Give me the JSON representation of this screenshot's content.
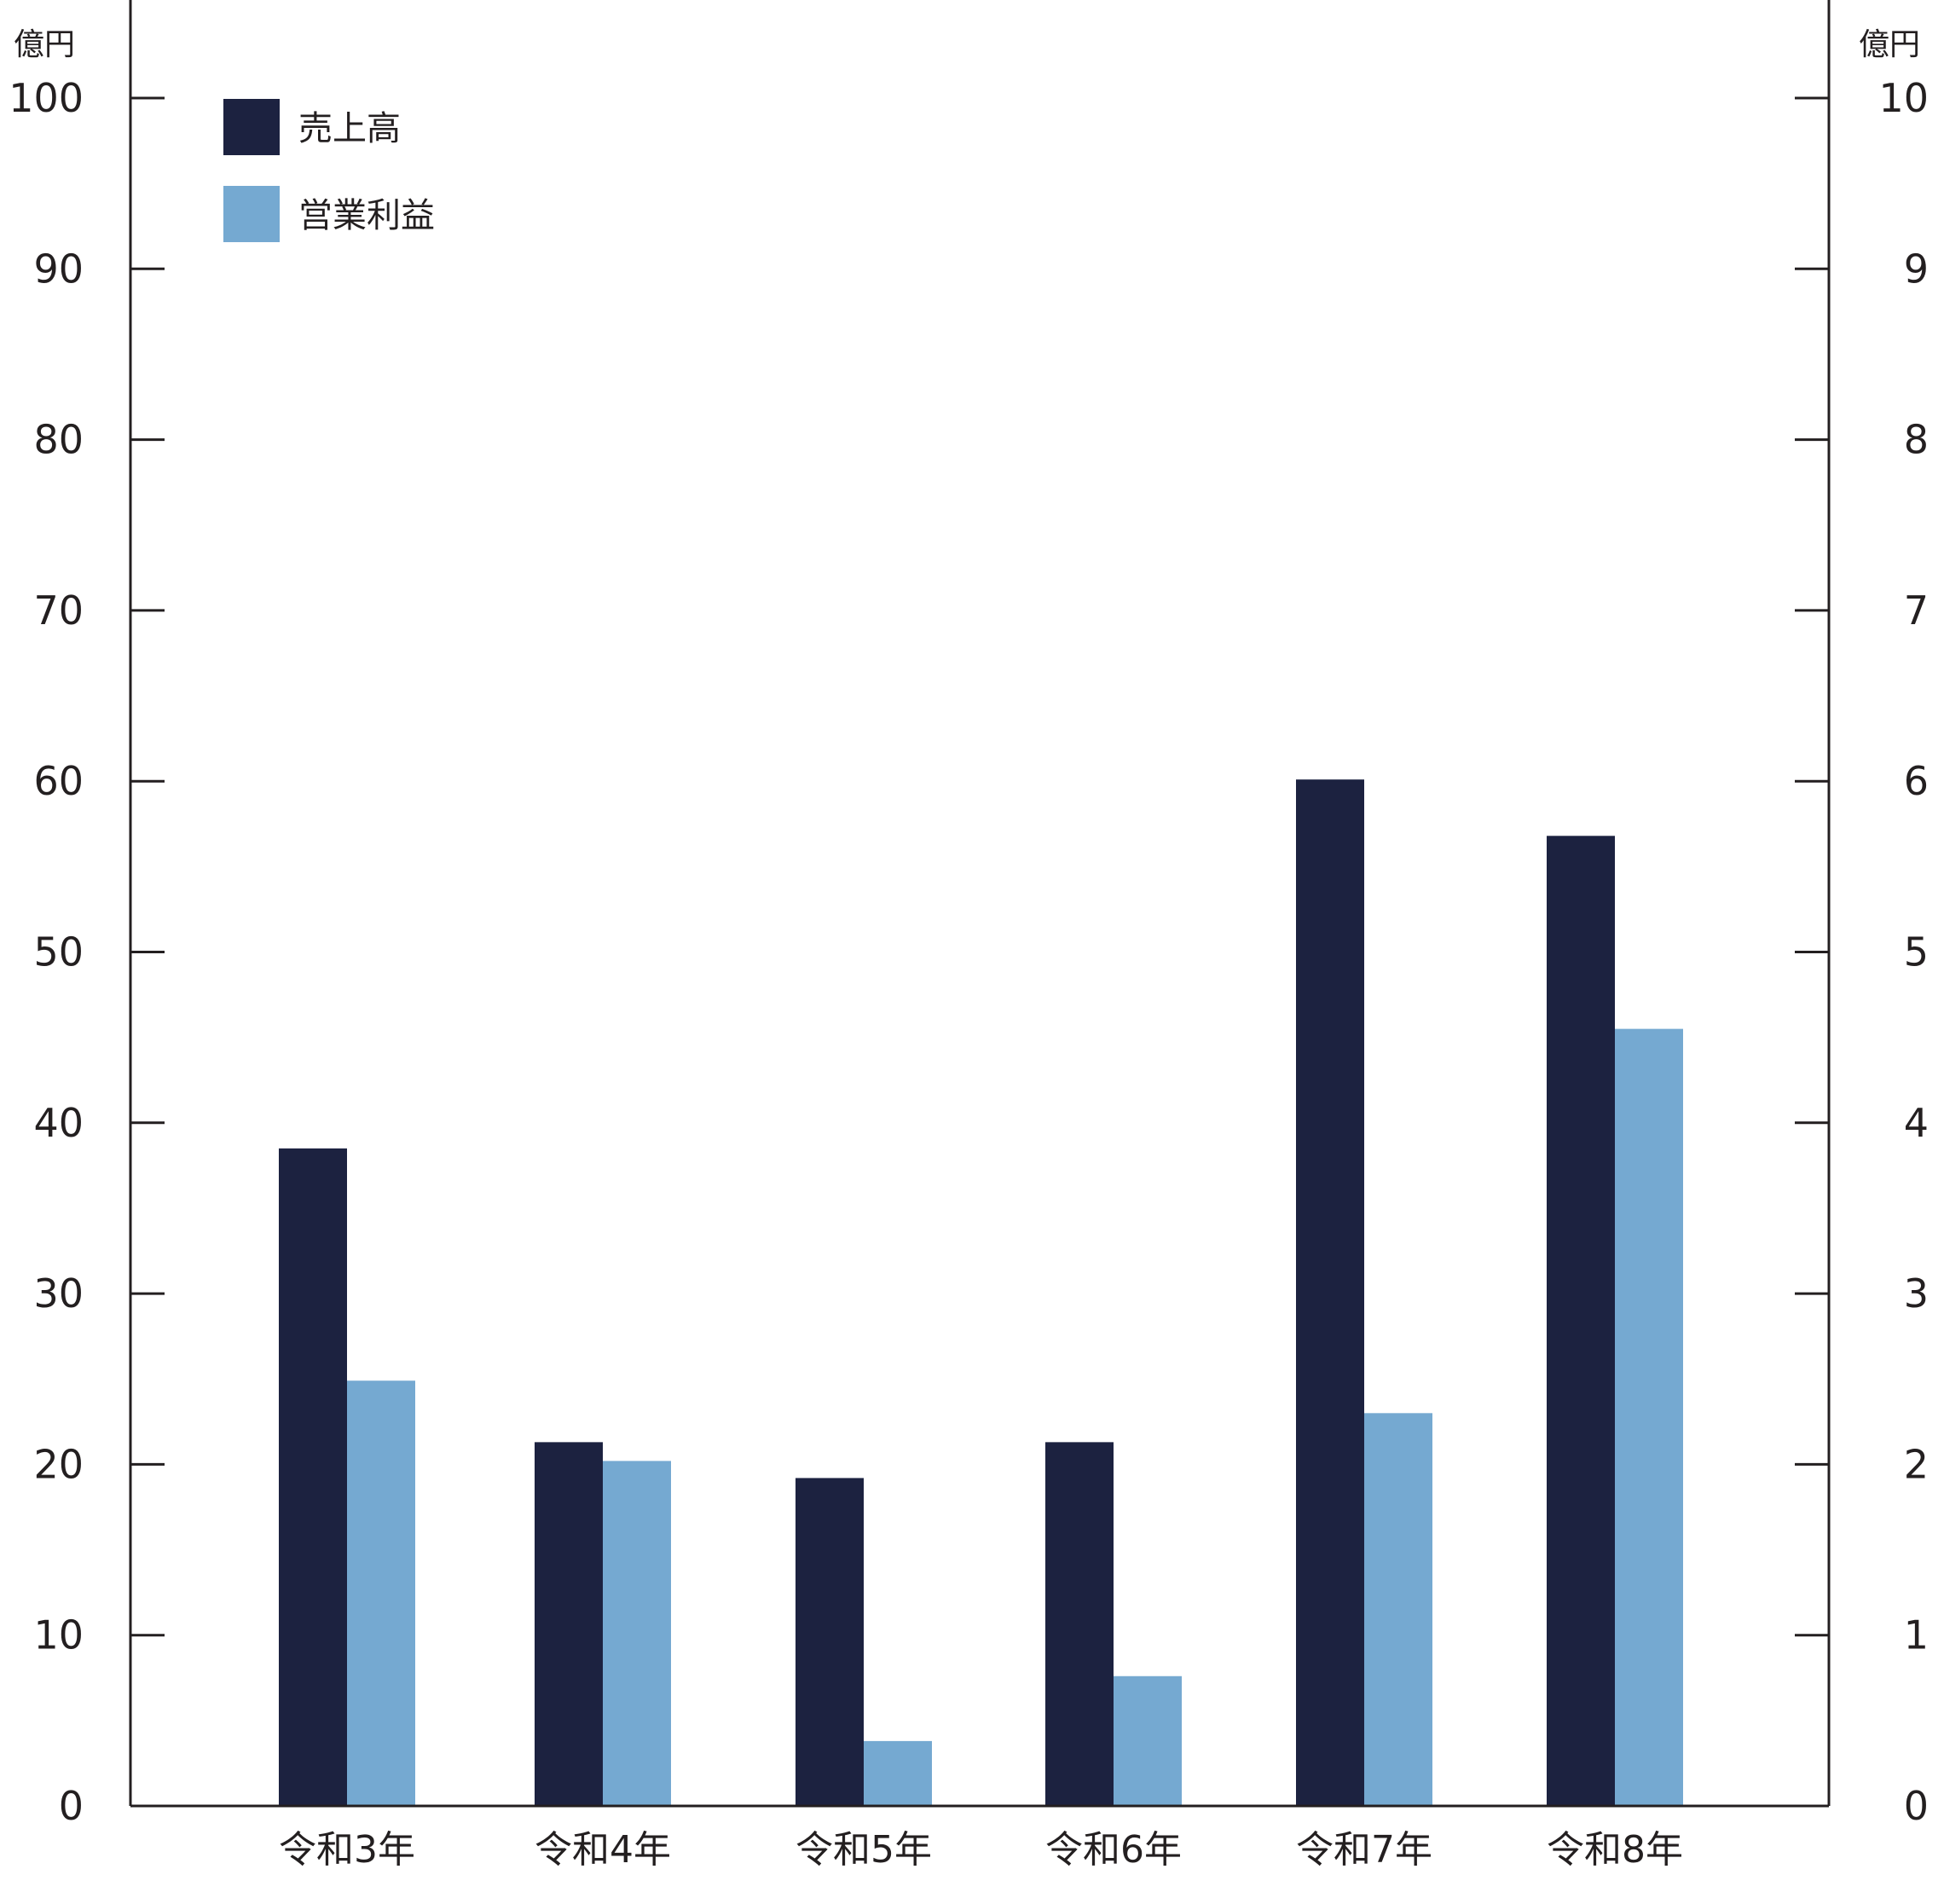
{
  "chart_data": {
    "type": "bar",
    "left_unit": "億円",
    "right_unit": "億円",
    "categories": [
      "令和3年",
      "令和4年",
      "令和5年",
      "令和6年",
      "令和7年",
      "令和8年"
    ],
    "series": [
      {
        "name": "売上高",
        "axis": "left",
        "color": "#1c2240",
        "values": [
          38.5,
          21.3,
          19.2,
          21.3,
          60.1,
          56.8
        ]
      },
      {
        "name": "営業利益",
        "axis": "right",
        "color": "#75a9d1",
        "values": [
          2.49,
          2.02,
          0.38,
          0.76,
          2.3,
          4.55
        ]
      }
    ],
    "left_axis": {
      "ylim": [
        0,
        100
      ],
      "ticks": [
        "0",
        "10",
        "20",
        "30",
        "40",
        "50",
        "60",
        "70",
        "80",
        "90",
        "100"
      ]
    },
    "right_axis": {
      "ylim": [
        0,
        10
      ],
      "ticks": [
        "0",
        "1",
        "2",
        "3",
        "4",
        "5",
        "6",
        "7",
        "8",
        "9",
        "10"
      ]
    },
    "legend_position": "top-left",
    "grid": false
  }
}
